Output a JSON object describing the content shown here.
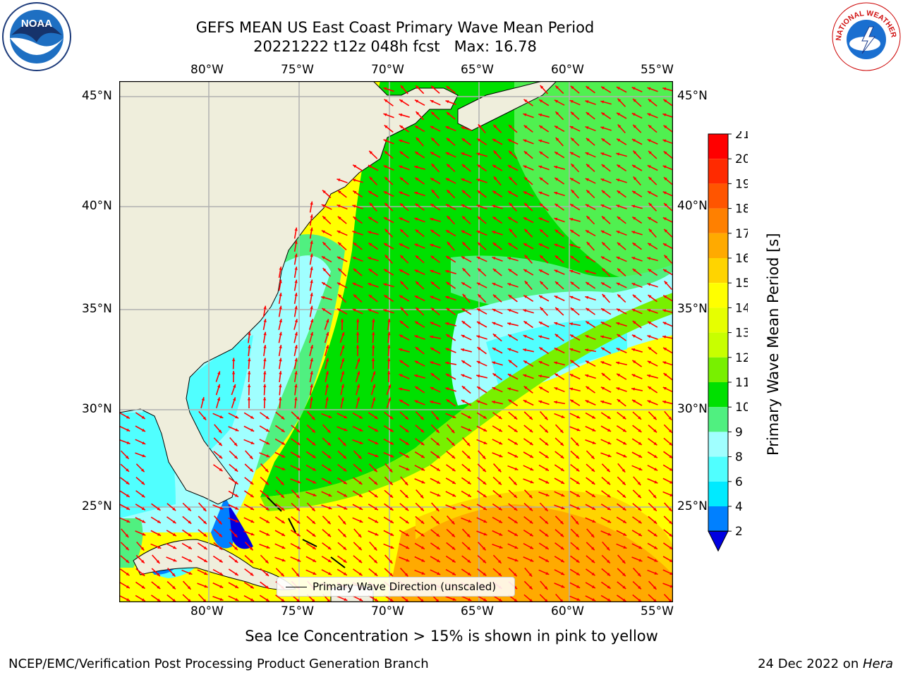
{
  "header": {
    "title_line1": "GEFS MEAN US East Coast Primary Wave Mean Period",
    "title_line2": "20221222 t12z 048h fcst   Max: 16.78"
  },
  "logos": {
    "noaa_text": "NOAA",
    "nws_text": "NATIONAL WEATHER SERVICE"
  },
  "map": {
    "lon_labels": [
      "80°W",
      "75°W",
      "70°W",
      "65°W",
      "60°W",
      "55°W"
    ],
    "lat_labels": [
      "45°N",
      "40°N",
      "35°N",
      "30°N",
      "25°N"
    ],
    "legend_label": "Primary Wave Direction (unscaled)",
    "arrow_color": "#ff0000",
    "land_color": "#efeedc"
  },
  "colorbar": {
    "title": "Primary Wave Mean Period [s]",
    "levels": [
      "21",
      "20",
      "19",
      "18",
      "17",
      "16",
      "15",
      "14",
      "13",
      "12",
      "11",
      "10",
      "9",
      "8",
      "6",
      "4",
      "2"
    ],
    "colors": [
      "#ff0000",
      "#ff2a00",
      "#ff5500",
      "#ff8000",
      "#ffaa00",
      "#ffd400",
      "#ffff00",
      "#e6ff00",
      "#c8ff00",
      "#78f000",
      "#00e000",
      "#50f080",
      "#a0ffff",
      "#50ffff",
      "#00eaff",
      "#0080ff",
      "#0000e0"
    ]
  },
  "notes": {
    "sea_ice": "Sea Ice Concentration > 15% is shown in pink to yellow"
  },
  "footer": {
    "left": "NCEP/EMC/Verification Post Processing Product Generation Branch",
    "right_prefix": "24 Dec 2022 on ",
    "right_machine": "Hera"
  }
}
